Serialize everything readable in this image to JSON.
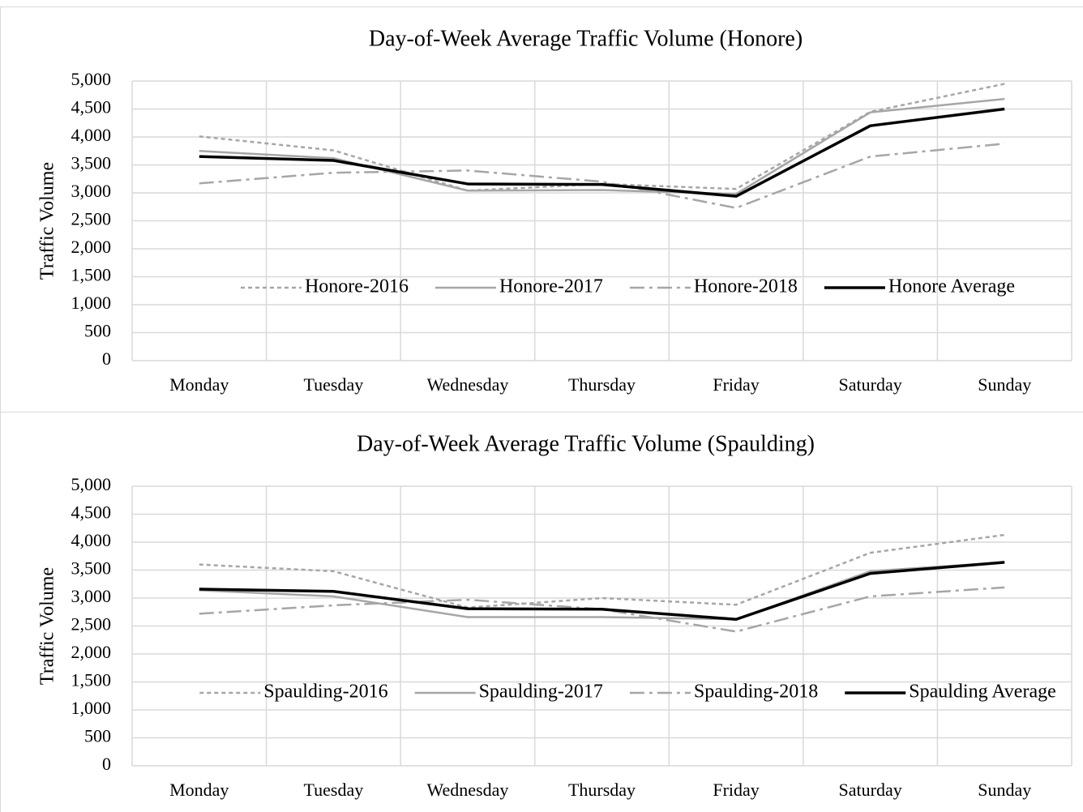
{
  "chart_data": [
    {
      "type": "line",
      "title": "Day-of-Week Average Traffic Volume (Honore)",
      "y_label": "Traffic Volume",
      "categories": [
        "Monday",
        "Tuesday",
        "Wednesday",
        "Thursday",
        "Friday",
        "Saturday",
        "Sunday"
      ],
      "series": [
        {
          "name": "Honore-2016",
          "color": "#a6a6a6",
          "style": "dashed",
          "values": [
            4010,
            3760,
            3040,
            3160,
            3070,
            4450,
            4950
          ]
        },
        {
          "name": "Honore-2017",
          "color": "#a6a6a6",
          "style": "solid",
          "values": [
            3750,
            3620,
            3040,
            3050,
            2980,
            4440,
            4680
          ]
        },
        {
          "name": "Honore-2018",
          "color": "#a6a6a6",
          "style": "dashdot",
          "values": [
            3170,
            3360,
            3400,
            3200,
            2730,
            3650,
            3880
          ]
        },
        {
          "name": "Honore Average",
          "color": "#000000",
          "style": "bold",
          "values": [
            3650,
            3580,
            3160,
            3150,
            2940,
            4200,
            4500
          ]
        }
      ],
      "ylim": [
        0,
        5000
      ],
      "yticks": [
        0,
        500,
        {
          "value": 1000,
          "label": "1,000"
        },
        {
          "value": 1500,
          "label": "1,500"
        },
        {
          "value": 2000,
          "label": "2,000"
        },
        {
          "value": 2500,
          "label": "2,500"
        },
        {
          "value": 3000,
          "label": "3,000"
        },
        {
          "value": 3500,
          "label": "3,500"
        },
        {
          "value": 4000,
          "label": "4,000"
        },
        {
          "value": 4500,
          "label": "4,500"
        },
        {
          "value": 5000,
          "label": "5,000"
        }
      ],
      "grid": true,
      "legend": "center"
    },
    {
      "type": "line",
      "title": "Day-of-Week Average Traffic Volume (Spaulding)",
      "y_label": "Traffic Volume",
      "categories": [
        "Monday",
        "Tuesday",
        "Wednesday",
        "Thursday",
        "Friday",
        "Saturday",
        "Sunday"
      ],
      "series": [
        {
          "name": "Spaulding-2016",
          "color": "#a6a6a6",
          "style": "dashed",
          "values": [
            3600,
            3480,
            2830,
            3000,
            2880,
            3810,
            4130
          ]
        },
        {
          "name": "Spaulding-2017",
          "color": "#a6a6a6",
          "style": "solid",
          "values": [
            3140,
            3030,
            2660,
            2660,
            2620,
            3480,
            3640
          ]
        },
        {
          "name": "Spaulding-2018",
          "color": "#a6a6a6",
          "style": "dashdot",
          "values": [
            2720,
            2870,
            2970,
            2800,
            2400,
            3030,
            3190
          ]
        },
        {
          "name": "Spaulding Average",
          "color": "#000000",
          "style": "bold",
          "values": [
            3160,
            3120,
            2810,
            2800,
            2620,
            3440,
            3640
          ]
        }
      ],
      "ylim": [
        0,
        5000
      ],
      "yticks": [
        0,
        500,
        {
          "value": 1000,
          "label": "1,000"
        },
        {
          "value": 1500,
          "label": "1,500"
        },
        {
          "value": 2000,
          "label": "2,000"
        },
        {
          "value": 2500,
          "label": "2,500"
        },
        {
          "value": 3000,
          "label": "3,000"
        },
        {
          "value": 3500,
          "label": "3,500"
        },
        {
          "value": 4000,
          "label": "4,000"
        },
        {
          "value": 4500,
          "label": "4,500"
        },
        {
          "value": 5000,
          "label": "5,000"
        }
      ],
      "grid": true,
      "legend": "center"
    }
  ]
}
